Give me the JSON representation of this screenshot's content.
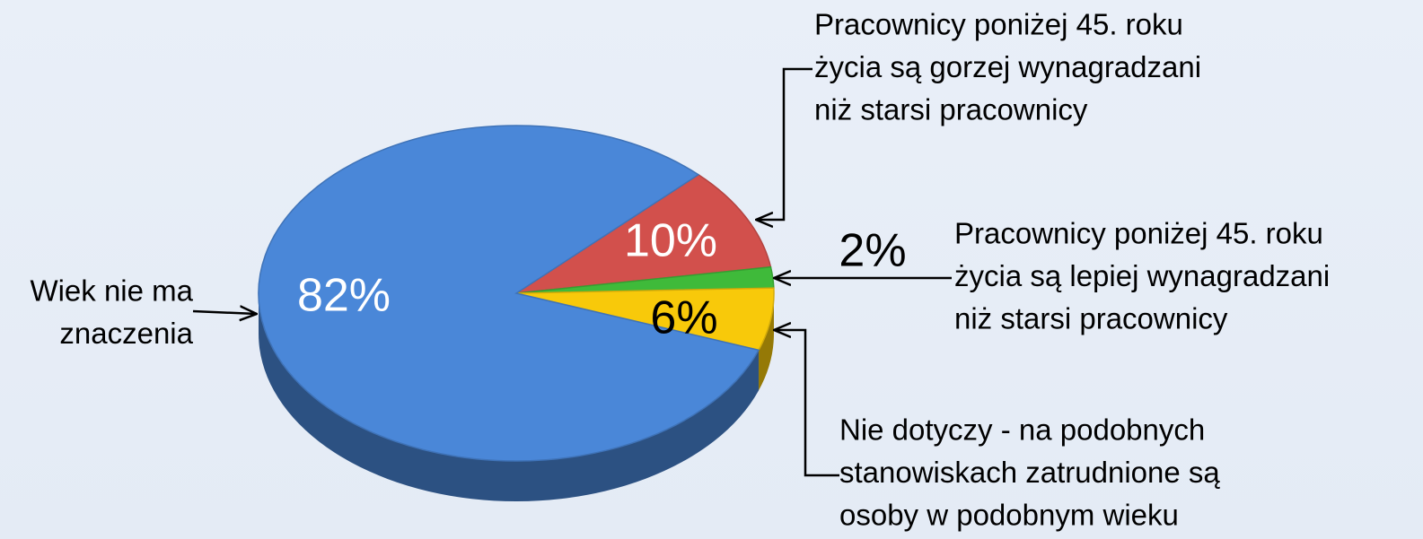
{
  "chart_data": {
    "type": "pie",
    "categories": [
      [
        "Wiek nie ma",
        "znaczenia"
      ],
      [
        "Pracownicy poniżej 45. roku",
        "życia są gorzej wynagradzani",
        "niż starsi pracownicy"
      ],
      [
        "Pracownicy poniżej 45. roku",
        "życia są lepiej wynagradzani",
        "niż starsi pracownicy"
      ],
      [
        "Nie dotyczy - na podobnych",
        "stanowiskach zatrudnione są",
        "osoby w podobnym wieku"
      ]
    ],
    "values": [
      82,
      10,
      2,
      6
    ],
    "value_labels": [
      "82%",
      "10%",
      "2%",
      "6%"
    ],
    "colors": [
      "#4a87d8",
      "#d2504c",
      "#3fba3a",
      "#f8c90a"
    ]
  }
}
